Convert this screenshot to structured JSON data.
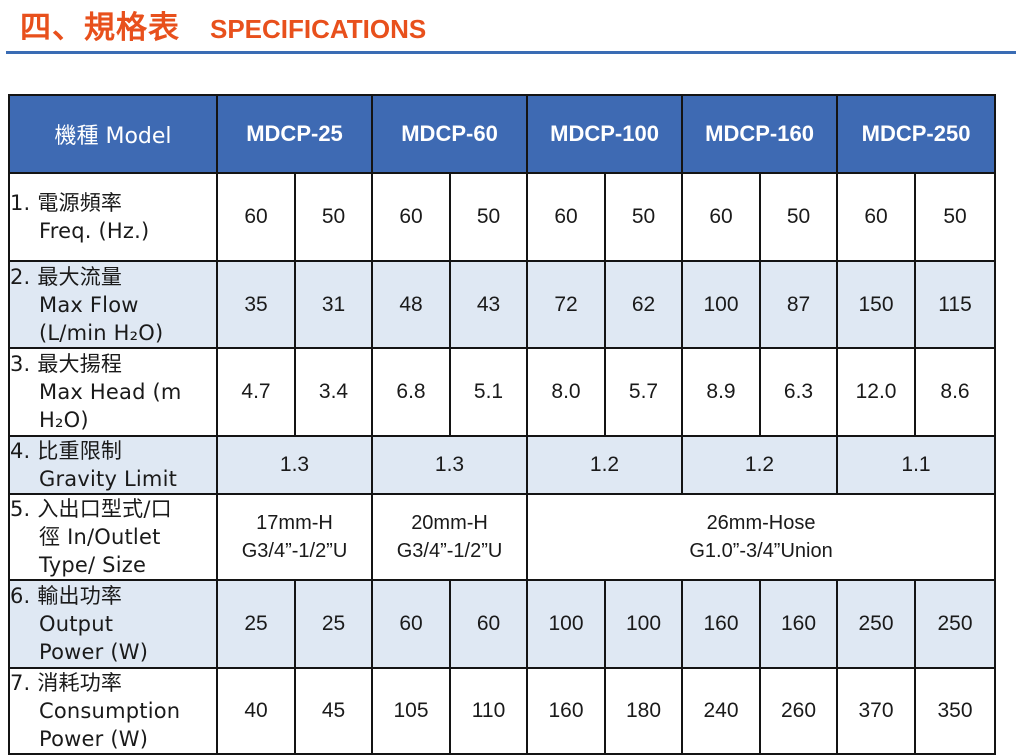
{
  "heading": {
    "zh": "四、規格表",
    "en": "SPECIFICATIONS"
  },
  "table": {
    "model_header": "機種  Model",
    "models": [
      "MDCP-25",
      "MDCP-60",
      "MDCP-100",
      "MDCP-160",
      "MDCP-250"
    ],
    "rows": [
      {
        "num": "1.",
        "zh": "電源頻率",
        "en": [
          "Freq. (Hz.)"
        ],
        "values": [
          "60",
          "50",
          "60",
          "50",
          "60",
          "50",
          "60",
          "50",
          "60",
          "50"
        ]
      },
      {
        "num": "2.",
        "zh": "最大流量",
        "en": [
          "Max Flow",
          "(L/min H₂O)"
        ],
        "values": [
          "35",
          "31",
          "48",
          "43",
          "72",
          "62",
          "100",
          "87",
          "150",
          "115"
        ]
      },
      {
        "num": "3.",
        "zh": "最大揚程",
        "en": [
          "Max Head (m",
          "H₂O)"
        ],
        "values": [
          "4.7",
          "3.4",
          "6.8",
          "5.1",
          "8.0",
          "5.7",
          "8.9",
          "6.3",
          "12.0",
          "8.6"
        ]
      },
      {
        "num": "4.",
        "zh": "比重限制",
        "en": [
          "Gravity Limit"
        ],
        "values": [
          "1.3",
          "1.3",
          "1.2",
          "1.2",
          "1.1"
        ]
      },
      {
        "num": "5.",
        "zh": "入出口型式/口",
        "en": [
          "徑  In/Outlet",
          "Type/ Size"
        ],
        "values": [
          [
            "17mm-H",
            "G3/4”-1/2”U"
          ],
          [
            "20mm-H",
            "G3/4”-1/2”U"
          ],
          [
            "26mm-Hose",
            "G1.0”-3/4”Union"
          ]
        ]
      },
      {
        "num": "6.",
        "zh": "輸出功率",
        "en": [
          "Output",
          "Power (W)"
        ],
        "values": [
          "25",
          "25",
          "60",
          "60",
          "100",
          "100",
          "160",
          "160",
          "250",
          "250"
        ]
      },
      {
        "num": "7.",
        "zh": "消耗功率",
        "en": [
          "Consumption",
          "Power (W)"
        ],
        "values": [
          "40",
          "45",
          "105",
          "110",
          "160",
          "180",
          "240",
          "260",
          "370",
          "350"
        ]
      }
    ]
  }
}
